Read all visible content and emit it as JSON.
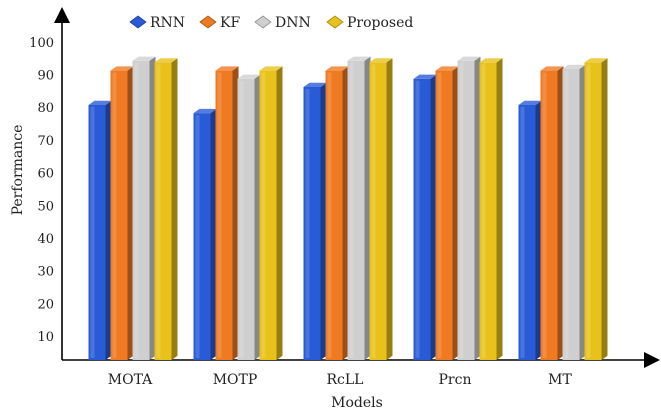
{
  "chart_data": {
    "type": "bar",
    "categories": [
      "MOTA",
      "MOTP",
      "RcLL",
      "Prcn",
      "MT"
    ],
    "series": [
      {
        "name": "RNN",
        "color": "#2a5bd7",
        "values": [
          81,
          78.5,
          86.5,
          89,
          81
        ]
      },
      {
        "name": "KF",
        "color": "#f07a22",
        "values": [
          91.5,
          91.5,
          91.5,
          91.5,
          91.5
        ]
      },
      {
        "name": "DNN",
        "color": "#cfcfcf",
        "values": [
          94.5,
          89,
          94.5,
          94.5,
          92
        ]
      },
      {
        "name": "Proposed",
        "color": "#e8c21a",
        "values": [
          94,
          91.5,
          94,
          94,
          94
        ]
      }
    ],
    "yticks": [
      10,
      20,
      30,
      40,
      50,
      60,
      70,
      80,
      90,
      100
    ],
    "ylim": [
      3,
      103
    ],
    "xlabel": "Models",
    "ylabel": "Performance",
    "legend_position": "top",
    "grid": false,
    "bar_style": "3d"
  }
}
